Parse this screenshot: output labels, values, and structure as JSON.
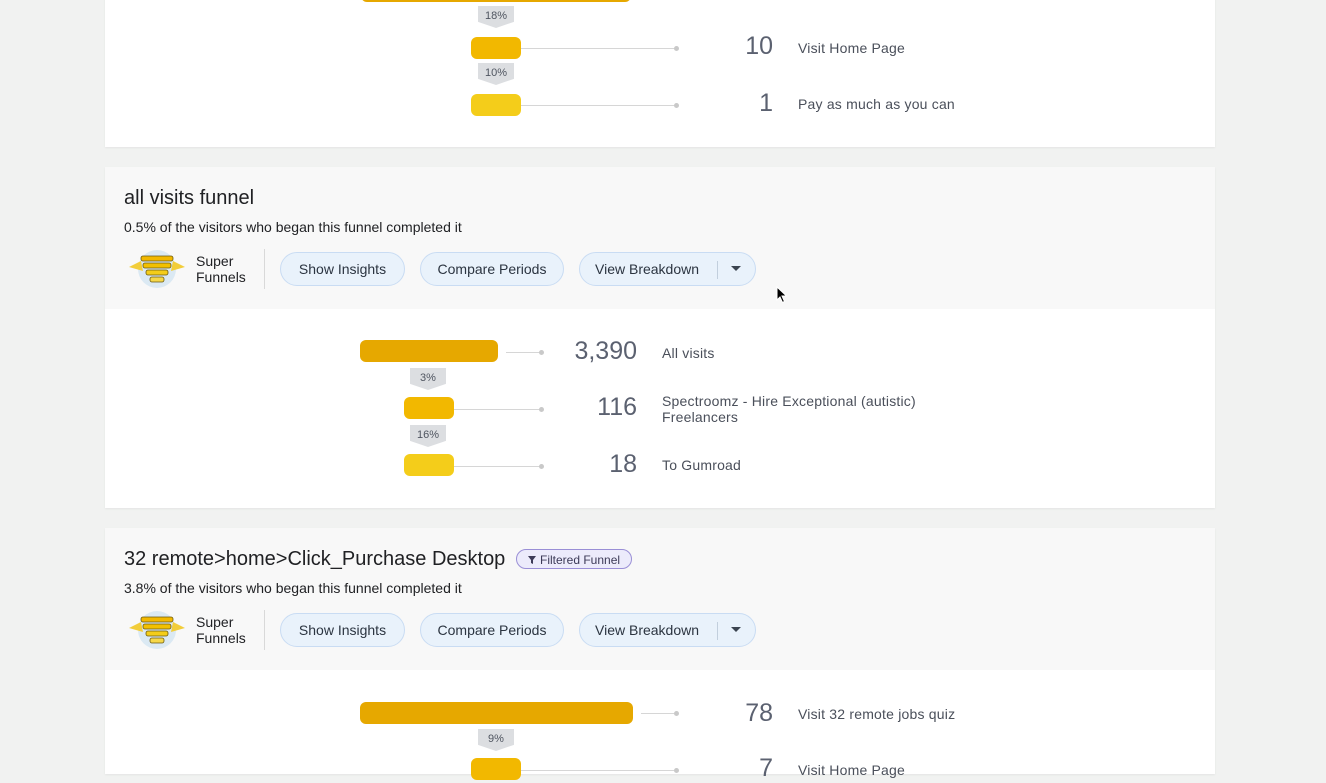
{
  "cards": [
    {
      "steps": [
        {
          "count": "10",
          "label": "Visit Home Page",
          "pct_before": "18%"
        },
        {
          "count": "1",
          "label": "Pay as much as you can",
          "pct_before": "10%"
        }
      ]
    },
    {
      "title": "all visits funnel",
      "subtitle": "0.5% of the visitors who began this funnel completed it",
      "brand": [
        "Super",
        "Funnels"
      ],
      "actions": {
        "insights": "Show Insights",
        "compare": "Compare Periods",
        "breakdown": "View Breakdown"
      },
      "steps": [
        {
          "count": "3,390",
          "label": "All visits"
        },
        {
          "count": "116",
          "label_lines": [
            "Spectroomz - Hire Exceptional (autistic)",
            "Freelancers"
          ],
          "pct_before": "3%"
        },
        {
          "count": "18",
          "label": "To Gumroad",
          "pct_before": "16%"
        }
      ]
    },
    {
      "title": "32 remote>home>Click_Purchase Desktop",
      "badge": "Filtered Funnel",
      "subtitle": "3.8% of the visitors who began this funnel completed it",
      "brand": [
        "Super",
        "Funnels"
      ],
      "actions": {
        "insights": "Show Insights",
        "compare": "Compare Periods",
        "breakdown": "View Breakdown"
      },
      "steps": [
        {
          "count": "78",
          "label": "Visit 32 remote jobs quiz"
        },
        {
          "count": "7",
          "label": "Visit Home Page",
          "pct_before": "9%"
        }
      ]
    }
  ],
  "colors": {
    "bar_dark": "#e6a800",
    "bar_mid": "#f2b800",
    "bar_light": "#f4cd1a",
    "pill_bg": "#e9f2fb",
    "badge_border": "#9a8fd6"
  },
  "icons": [
    "funnel-logo-icon",
    "filter-icon",
    "dropdown-caret-icon",
    "mouse-cursor-icon"
  ]
}
